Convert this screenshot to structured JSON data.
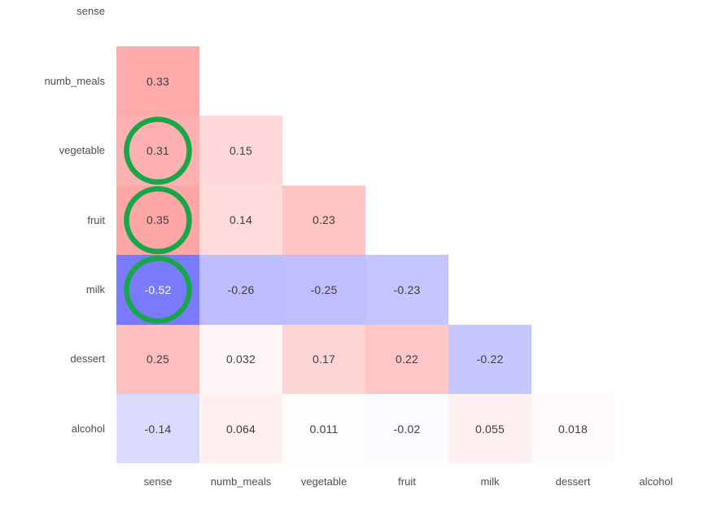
{
  "chart_data": {
    "type": "heatmap",
    "title": "",
    "xlabel": "",
    "ylabel": "",
    "row_labels": [
      "sense",
      "numb_meals",
      "vegetable",
      "fruit",
      "milk",
      "dessert",
      "alcohol"
    ],
    "col_labels": [
      "sense",
      "numb_meals",
      "vegetable",
      "fruit",
      "milk",
      "dessert",
      "alcohol"
    ],
    "mask": "upper-triangle-including-diagonal",
    "colormap": {
      "name": "blue-white-red",
      "negative_end": "#0000ff",
      "midpoint": "#ffffff",
      "positive_end": "#ff0000",
      "vmin": -1,
      "vmax": 1
    },
    "grid": false,
    "legend": false,
    "cells": [
      {
        "row": "numb_meals",
        "col": "sense",
        "value": 0.33,
        "label": "0.33"
      },
      {
        "row": "vegetable",
        "col": "sense",
        "value": 0.31,
        "label": "0.31"
      },
      {
        "row": "vegetable",
        "col": "numb_meals",
        "value": 0.15,
        "label": "0.15"
      },
      {
        "row": "fruit",
        "col": "sense",
        "value": 0.35,
        "label": "0.35"
      },
      {
        "row": "fruit",
        "col": "numb_meals",
        "value": 0.14,
        "label": "0.14"
      },
      {
        "row": "fruit",
        "col": "vegetable",
        "value": 0.23,
        "label": "0.23"
      },
      {
        "row": "milk",
        "col": "sense",
        "value": -0.52,
        "label": "-0.52"
      },
      {
        "row": "milk",
        "col": "numb_meals",
        "value": -0.26,
        "label": "-0.26"
      },
      {
        "row": "milk",
        "col": "vegetable",
        "value": -0.25,
        "label": "-0.25"
      },
      {
        "row": "milk",
        "col": "fruit",
        "value": -0.23,
        "label": "-0.23"
      },
      {
        "row": "dessert",
        "col": "sense",
        "value": 0.25,
        "label": "0.25"
      },
      {
        "row": "dessert",
        "col": "numb_meals",
        "value": 0.032,
        "label": "0.032"
      },
      {
        "row": "dessert",
        "col": "vegetable",
        "value": 0.17,
        "label": "0.17"
      },
      {
        "row": "dessert",
        "col": "fruit",
        "value": 0.22,
        "label": "0.22"
      },
      {
        "row": "dessert",
        "col": "milk",
        "value": -0.22,
        "label": "-0.22"
      },
      {
        "row": "alcohol",
        "col": "sense",
        "value": -0.14,
        "label": "-0.14"
      },
      {
        "row": "alcohol",
        "col": "numb_meals",
        "value": 0.064,
        "label": "0.064"
      },
      {
        "row": "alcohol",
        "col": "vegetable",
        "value": 0.011,
        "label": "0.011"
      },
      {
        "row": "alcohol",
        "col": "fruit",
        "value": -0.02,
        "label": "-0.02"
      },
      {
        "row": "alcohol",
        "col": "milk",
        "value": 0.055,
        "label": "0.055"
      },
      {
        "row": "alcohol",
        "col": "dessert",
        "value": 0.018,
        "label": "0.018"
      }
    ],
    "annotations": {
      "highlight_circles": [
        {
          "row": "vegetable",
          "col": "sense"
        },
        {
          "row": "fruit",
          "col": "sense"
        },
        {
          "row": "milk",
          "col": "sense"
        }
      ],
      "circle_color": "#17a648"
    }
  },
  "styles": {
    "tick_label_color": "#4d4d4d",
    "cell_text_dark": "#3d3d3d",
    "cell_text_light": "#ffffff",
    "background": "#ffffff"
  }
}
